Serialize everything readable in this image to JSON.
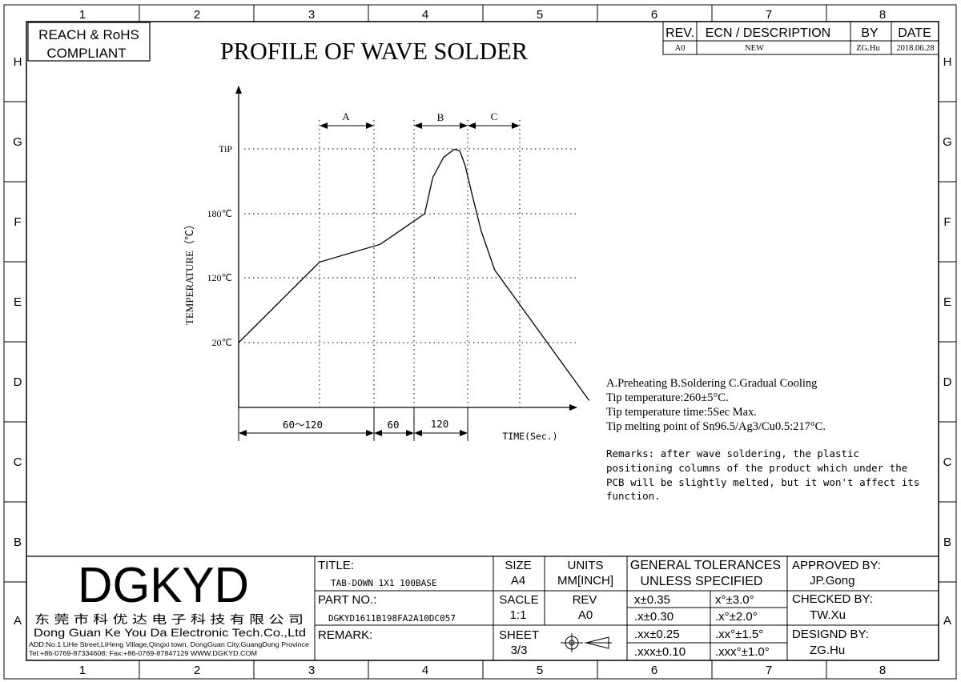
{
  "frame": {
    "col_labels": [
      "1",
      "2",
      "3",
      "4",
      "5",
      "6",
      "7",
      "8"
    ],
    "row_labels": [
      "H",
      "G",
      "F",
      "E",
      "D",
      "C",
      "B",
      "A"
    ]
  },
  "compliance_badge": [
    "REACH & RoHS",
    "COMPLIANT"
  ],
  "drawing_title": "PROFILE OF WAVE SOLDER",
  "revision_table": {
    "headers": [
      "REV.",
      "ECN / DESCRIPTION",
      "BY",
      "DATE"
    ],
    "row": [
      "A0",
      "NEW",
      "ZG.Hu",
      "2018.06.28"
    ]
  },
  "chart_data": {
    "type": "line",
    "ylabel": "TEMPERATURE（℃）",
    "xlabel": "TIME(Sec.)",
    "y_ticks": [
      "TiP",
      "180℃",
      "120℃",
      "20℃"
    ],
    "zones": [
      "A",
      "B",
      "C"
    ],
    "durations": [
      "60～120",
      "60",
      "120"
    ],
    "series": [
      {
        "x": [
          0,
          60,
          105,
          138,
          144,
          152,
          160,
          164,
          168,
          173,
          180,
          190,
          203,
          260
        ],
        "y": [
          20,
          120,
          142,
          180,
          225,
          250,
          260,
          258,
          240,
          205,
          158,
          110,
          80,
          -52
        ]
      }
    ]
  },
  "notes": [
    "A.Preheating  B.Soldering  C.Gradual Cooling",
    "Tip temperature:260±5°C.",
    "Tip temperature time:5Sec Max.",
    "Tip melting point of Sn96.5/Ag3/Cu0.5:217°C."
  ],
  "remarks": [
    "Remarks: after wave soldering, the plastic",
    "positioning columns of the product  which under the",
    "PCB will be slightly melted, but it won't affect its",
    "function."
  ],
  "title_block": {
    "logo": "DGKYD",
    "company_cn": "东 莞 市 科 优 达 电 子 科 技 有 限 公 司",
    "company_en": "Dong Guan Ke You Da Electronic Tech.Co.,Ltd",
    "address": "ADD:No.1 LiHe Street,LiHeng Village,Qingxi town, DongGuan City,GuangDong Province",
    "contact": "Tel:+86-0769-87334608; Fax:+86-0769-87847129  WWW.DGKYD.COM",
    "title_label": "TITLE:",
    "title_value": "TAB-DOWN 1X1 100BASE",
    "part_label": "PART NO.:",
    "part_value": "DGKYD1611B198FA2A10DC057",
    "remark_label": "REMARK:",
    "size_label": "SIZE",
    "size_value": "A4",
    "units_label": "UNITS",
    "units_value": "MM[INCH]",
    "scale_label": "SACLE",
    "scale_value": "1:1",
    "rev_label": "REV",
    "rev_value": "A0",
    "sheet_label": "SHEET",
    "sheet_value": "3/3",
    "tol_header_1": "GENERAL TOLERANCES",
    "tol_header_2": "UNLESS SPECIFIED",
    "tolerances": [
      [
        "x±0.35",
        "x°±3.0°"
      ],
      [
        ".x±0.30",
        ".x°±2.0°"
      ],
      [
        ".xx±0.25",
        ".xx°±1.5°"
      ],
      [
        ".xxx±0.10",
        ".xxx°±1.0°"
      ]
    ],
    "approved_label": "APPROVED BY:",
    "approved_value": "JP.Gong",
    "checked_label": "CHECKED BY:",
    "checked_value": "TW.Xu",
    "designed_label": "DESIGND BY:",
    "designed_value": "ZG.Hu"
  }
}
